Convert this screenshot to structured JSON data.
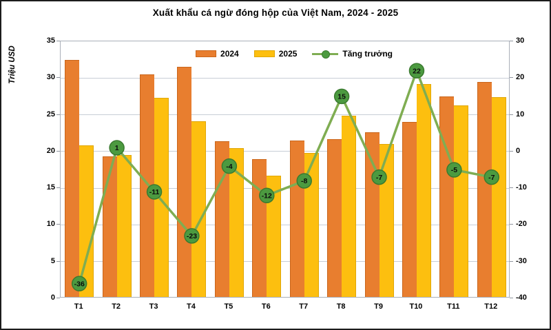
{
  "title": "Xuất khẩu cá ngừ đóng hộp của Việt Nam, 2024 - 2025",
  "colors": {
    "bar_2024": "#E87E2F",
    "bar_2024_border": "#C9651A",
    "bar_2025": "#FDBF0F",
    "bar_2025_border": "#E0A606",
    "growth_line": "#7FAD52",
    "growth_marker_fill": "#4C9A40",
    "growth_marker_stroke": "#3A7A2F",
    "gridline": "#C7CDD6",
    "plot_border": "#A9AFB8"
  },
  "chart_data": {
    "type": "bar",
    "subtype": "grouped-bars-with-growth-line",
    "title": "Xuất khẩu cá ngừ đóng hộp của Việt Nam, 2024 - 2025",
    "categories": [
      "T1",
      "T2",
      "T3",
      "T4",
      "T5",
      "T6",
      "T7",
      "T8",
      "T9",
      "T10",
      "T11",
      "T12"
    ],
    "series": [
      {
        "name": "2024",
        "type": "bar",
        "axis": "left",
        "color": "#E87E2F",
        "values": [
          32.3,
          19.1,
          30.3,
          31.3,
          21.2,
          18.8,
          21.3,
          21.5,
          22.4,
          23.8,
          27.3,
          29.3
        ]
      },
      {
        "name": "2025",
        "type": "bar",
        "axis": "left",
        "color": "#FDBF0F",
        "values": [
          20.6,
          19.3,
          27.1,
          23.9,
          20.3,
          16.5,
          19.6,
          24.7,
          20.8,
          29.0,
          26.1,
          27.2
        ]
      },
      {
        "name": "Tăng trưởng",
        "type": "line",
        "axis": "right",
        "color": "#7FAD52",
        "values": [
          -36,
          1,
          -11,
          -23,
          -4,
          -12,
          -8,
          15,
          -7,
          22,
          -5,
          -7
        ],
        "point_labels": [
          "-36",
          "1",
          "-11",
          "-23",
          "-4",
          "-12",
          "-8",
          "15",
          "-7",
          "22",
          "-5",
          "-7"
        ]
      }
    ],
    "left_axis": {
      "label": "Triệu USD",
      "min": 0,
      "max": 35,
      "step": 5,
      "ticks": [
        0,
        5,
        10,
        15,
        20,
        25,
        30,
        35
      ]
    },
    "right_axis": {
      "label": "",
      "min": -40,
      "max": 30,
      "step": 10,
      "ticks": [
        -40,
        -30,
        -20,
        -10,
        0,
        10,
        20,
        30
      ]
    },
    "legend_position": "top-center",
    "grid": true
  }
}
